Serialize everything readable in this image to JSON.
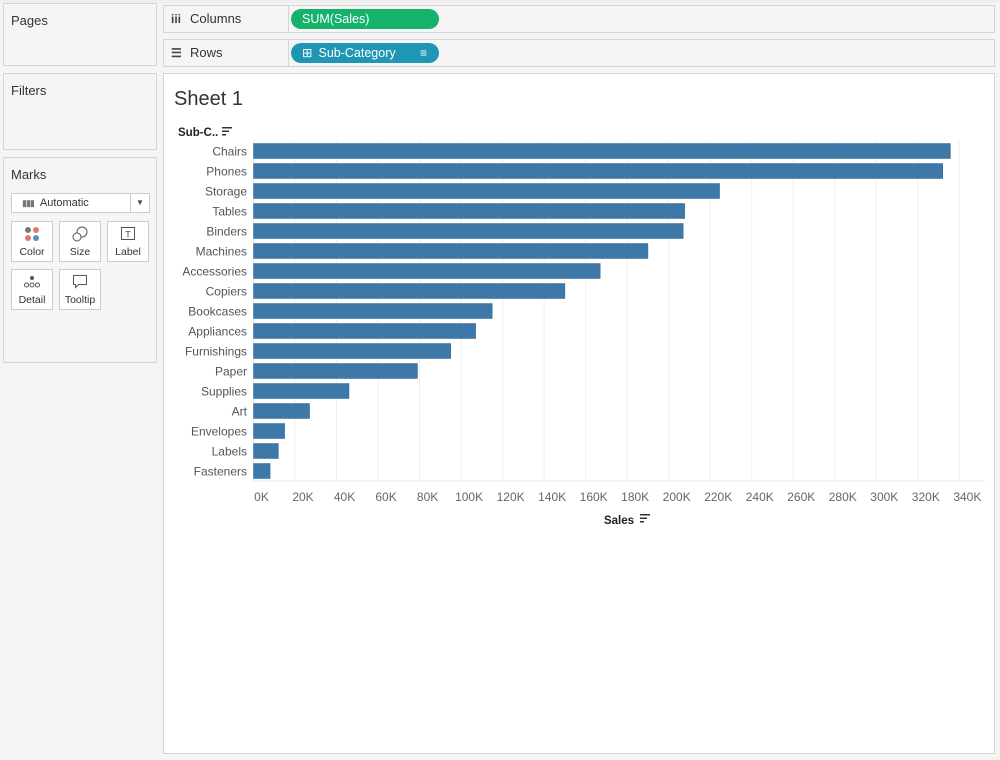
{
  "cards": {
    "pages": "Pages",
    "filters": "Filters",
    "marks": "Marks"
  },
  "marks": {
    "type": "Automatic",
    "buttons": [
      {
        "label": "Color",
        "icon": "color-icon"
      },
      {
        "label": "Size",
        "icon": "size-icon"
      },
      {
        "label": "Label",
        "icon": "label-icon"
      },
      {
        "label": "Detail",
        "icon": "detail-icon"
      },
      {
        "label": "Tooltip",
        "icon": "tooltip-icon"
      }
    ]
  },
  "shelves": {
    "columns": {
      "label": "Columns",
      "pill": "SUM(Sales)",
      "color": "#15b26b"
    },
    "rows": {
      "label": "Rows",
      "pill": "Sub-Category",
      "color": "#1f97b4"
    }
  },
  "sheet": {
    "title": "Sheet 1"
  },
  "chart_data": {
    "type": "bar",
    "orientation": "horizontal",
    "row_header": "Sub-C..",
    "xlabel": "Sales",
    "bar_color": "#3e78a8",
    "categories": [
      "Chairs",
      "Phones",
      "Storage",
      "Tables",
      "Binders",
      "Machines",
      "Accessories",
      "Copiers",
      "Bookcases",
      "Appliances",
      "Furnishings",
      "Paper",
      "Supplies",
      "Art",
      "Envelopes",
      "Labels",
      "Fasteners"
    ],
    "values": [
      335700,
      332000,
      224500,
      207700,
      207000,
      190000,
      167000,
      150000,
      115000,
      107000,
      95000,
      79000,
      46000,
      27000,
      15000,
      12000,
      8000
    ],
    "xlim": [
      0,
      352000
    ],
    "ticks": [
      0,
      20000,
      40000,
      60000,
      80000,
      100000,
      120000,
      140000,
      160000,
      180000,
      200000,
      220000,
      240000,
      260000,
      280000,
      300000,
      320000,
      340000
    ],
    "tick_labels": [
      "0K",
      "20K",
      "40K",
      "60K",
      "80K",
      "100K",
      "120K",
      "140K",
      "160K",
      "180K",
      "200K",
      "220K",
      "240K",
      "260K",
      "280K",
      "300K",
      "320K",
      "340K"
    ],
    "grid": true
  }
}
